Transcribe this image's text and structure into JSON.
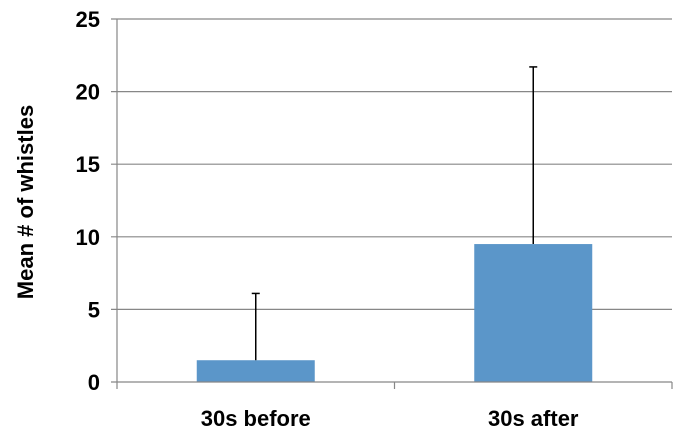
{
  "chart_data": {
    "type": "bar",
    "title": "",
    "xlabel": "",
    "ylabel": "Mean # of whistles",
    "categories": [
      "30s before",
      "30s after"
    ],
    "values": [
      1.5,
      9.5
    ],
    "error_upper": [
      6.1,
      21.7
    ],
    "ylim": [
      0,
      25
    ],
    "yticks": [
      0,
      5,
      10,
      15,
      20,
      25
    ],
    "grid": true,
    "legend": "none",
    "colors": {
      "bar": "#5b96c9",
      "grid": "#878787",
      "axis": "#878787",
      "error_bar": "#000000"
    }
  }
}
